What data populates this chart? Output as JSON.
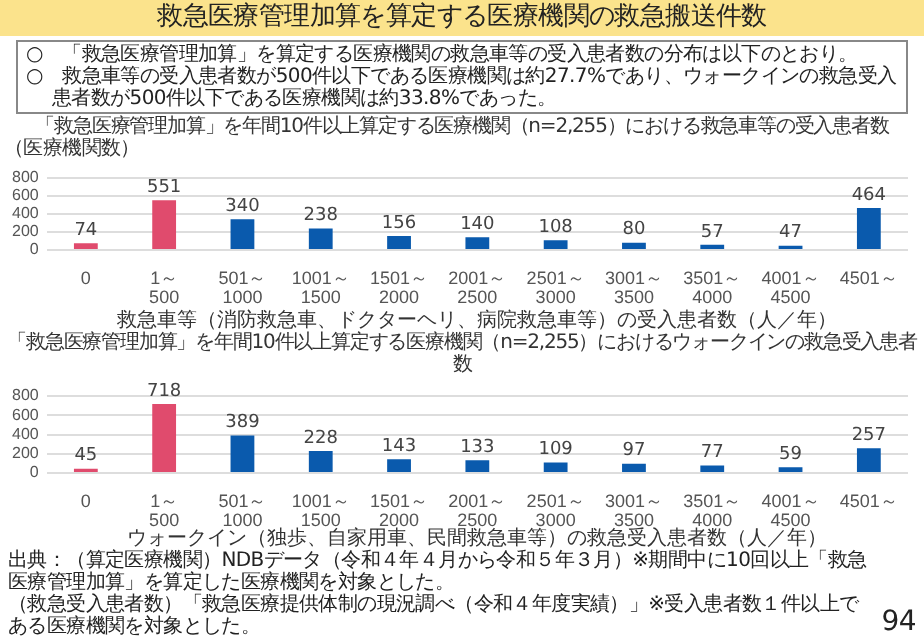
{
  "chart_data": [
    {
      "type": "bar",
      "title": "救急医療管理加算を算定する医療機関の救急搬送件数",
      "subtitle": "「救急医療管理加算」を年間10件以上算定する医療機関（n=2,255）における救急車等の受入患者数",
      "ylabel": "（医療機関数）",
      "xlabel": "救急車等（消防救急車、ドクターヘリ、病院救急車等）の受入患者数（人／年）",
      "annotations": [
        "○　「救急医療管理加算」を算定する医療機関の救急車等の受入患者数の分布は以下のとおり。",
        "○　救急車等の受入患者数が500件以下である医療機関は約27.7%であり、ウォークインの救急受入患者数が500件以下である医療機関は約33.8%であった。"
      ],
      "categories": [
        "0",
        "1～500",
        "501～1000",
        "1001～1500",
        "1501～2000",
        "2001～2500",
        "2501～3000",
        "3001～3500",
        "3501～4000",
        "4001～4500",
        "4501～"
      ],
      "values": [
        74,
        551,
        340,
        238,
        156,
        140,
        108,
        80,
        57,
        47,
        464
      ],
      "colors": [
        "#e04b6d",
        "#e04b6d",
        "#0a5aad",
        "#0a5aad",
        "#0a5aad",
        "#0a5aad",
        "#0a5aad",
        "#0a5aad",
        "#0a5aad",
        "#0a5aad",
        "#0a5aad"
      ],
      "ylim": [
        0,
        800
      ],
      "yticks": [
        0,
        200,
        400,
        600,
        800
      ],
      "grid": "y",
      "data_labels": true
    },
    {
      "type": "bar",
      "title": "「救急医療管理加算」を年間10件以上算定する医療機関（n=2,255）におけるウォークインの救急受入患者数",
      "xlabel": "ウォークイン（独歩、自家用車、民間救急車等）の救急受入患者数（人／年）",
      "annotations": [
        "出典：（算定医療機関）NDBデータ（令和４年４月から令和５年３月）※期間中に10回以上「救急医療管理加算」を算定した医療機関を対象とした。",
        "（救急受入患者数）「救急医療提供体制の現況調べ（令和４年度実績）」※受入患者数１件以上である医療機関を対象とした。",
        "94"
      ],
      "categories": [
        "0",
        "1～500",
        "501～1000",
        "1001～1500",
        "1501～2000",
        "2001～2500",
        "2501～3000",
        "3001～3500",
        "3501～4000",
        "4001～4500",
        "4501～"
      ],
      "values": [
        45,
        718,
        389,
        228,
        143,
        133,
        109,
        97,
        77,
        59,
        257
      ],
      "colors": [
        "#e04b6d",
        "#e04b6d",
        "#0a5aad",
        "#0a5aad",
        "#0a5aad",
        "#0a5aad",
        "#0a5aad",
        "#0a5aad",
        "#0a5aad",
        "#0a5aad",
        "#0a5aad"
      ],
      "ylim": [
        0,
        800
      ],
      "yticks": [
        0,
        200,
        400,
        600,
        800
      ],
      "grid": "y",
      "data_labels": true
    }
  ]
}
